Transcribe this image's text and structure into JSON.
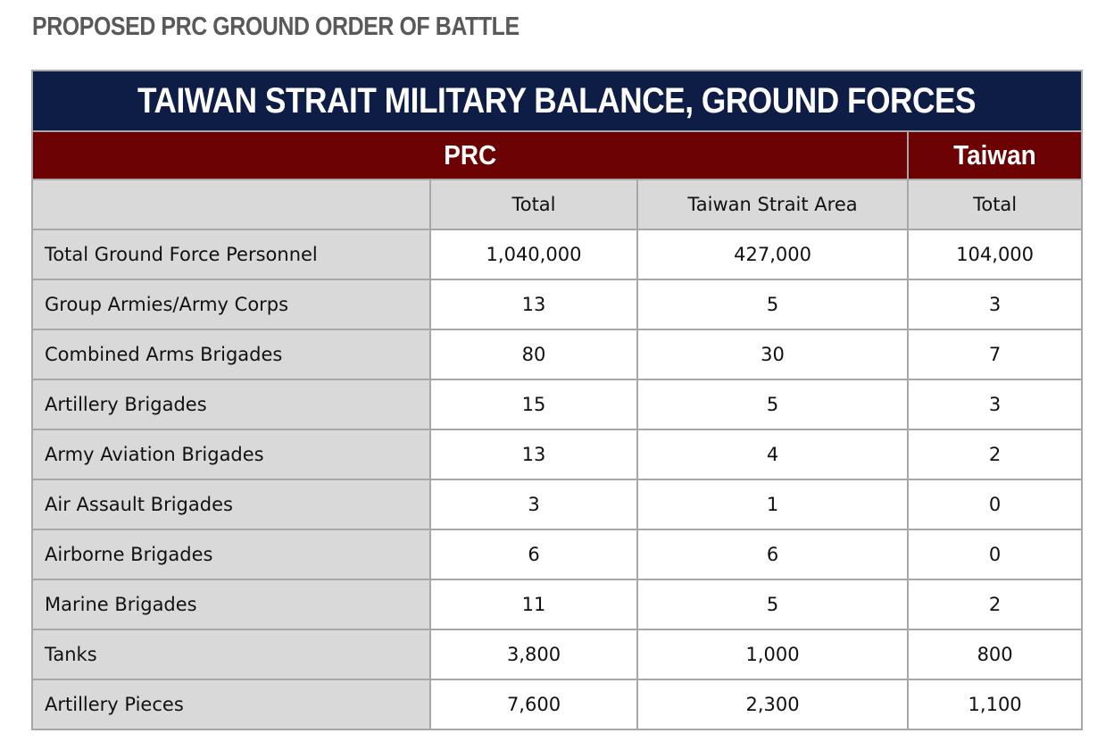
{
  "heading": "PROPOSED PRC GROUND ORDER OF BATTLE",
  "table": {
    "title": "TAIWAN STRAIT MILITARY BALANCE, GROUND FORCES",
    "groups": {
      "prc": "PRC",
      "taiwan": "Taiwan"
    },
    "columns": [
      "Total",
      "Taiwan Strait Area",
      "Total"
    ],
    "rows": [
      {
        "label": "Total Ground Force Personnel",
        "prc_total": "1,040,000",
        "strait_area": "427,000",
        "taiwan_total": "104,000"
      },
      {
        "label": "Group Armies/Army Corps",
        "prc_total": "13",
        "strait_area": "5",
        "taiwan_total": "3"
      },
      {
        "label": "Combined Arms Brigades",
        "prc_total": "80",
        "strait_area": "30",
        "taiwan_total": "7"
      },
      {
        "label": "Artillery Brigades",
        "prc_total": "15",
        "strait_area": "5",
        "taiwan_total": "3"
      },
      {
        "label": "Army Aviation Brigades",
        "prc_total": "13",
        "strait_area": "4",
        "taiwan_total": "2"
      },
      {
        "label": "Air Assault Brigades",
        "prc_total": "3",
        "strait_area": "1",
        "taiwan_total": "0"
      },
      {
        "label": "Airborne Brigades",
        "prc_total": "6",
        "strait_area": "6",
        "taiwan_total": "0"
      },
      {
        "label": "Marine Brigades",
        "prc_total": "11",
        "strait_area": "5",
        "taiwan_total": "2"
      },
      {
        "label": "Tanks",
        "prc_total": "3,800",
        "strait_area": "1,000",
        "taiwan_total": "800"
      },
      {
        "label": "Artillery Pieces",
        "prc_total": "7,600",
        "strait_area": "2,300",
        "taiwan_total": "1,100"
      }
    ]
  },
  "colors": {
    "title_bg": "#0e1d45",
    "group_bg": "#6b0102",
    "label_bg": "#d9d9d9",
    "heading_text": "#58595b"
  }
}
